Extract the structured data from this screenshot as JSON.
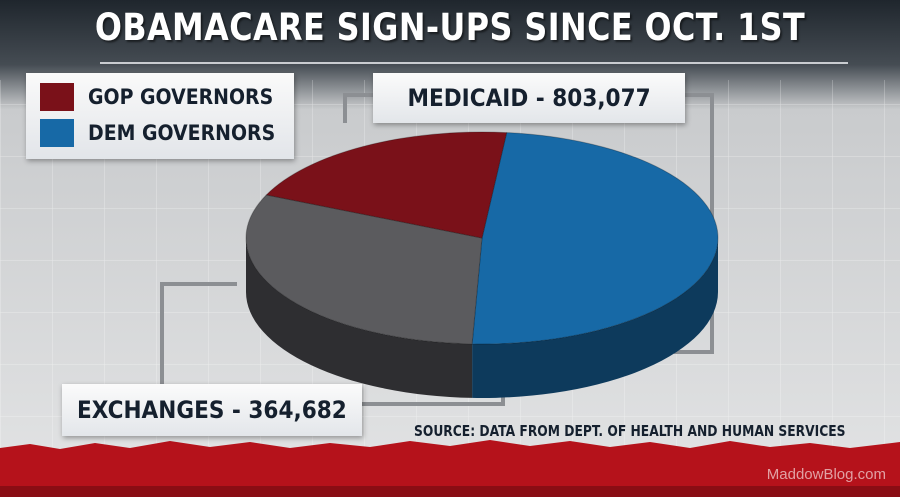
{
  "title": "OBAMACARE SIGN-UPS SINCE OCT. 1ST",
  "legend": [
    {
      "label": "GOP GOVERNORS",
      "color": "#7a1119"
    },
    {
      "label": "DEM GOVERNORS",
      "color": "#1769a6"
    }
  ],
  "callouts": {
    "medicaid": "MEDICAID - 803,077",
    "exchanges": "EXCHANGES - 364,682"
  },
  "source": "SOURCE: DATA FROM DEPT. OF HEALTH AND HUMAN SERVICES",
  "watermark": "MaddowBlog.com",
  "chart_data": {
    "type": "pie",
    "title": "OBAMACARE SIGN-UPS SINCE OCT. 1ST",
    "start_angle_deg": -84,
    "slices": [
      {
        "label": "DEM GOVERNORS",
        "fraction": 0.49,
        "color": "#1769a6",
        "side_color": "#0d3a5c"
      },
      {
        "label": "",
        "fraction": 0.31,
        "color": "#5b5b5e",
        "side_color": "#2e2e31"
      },
      {
        "label": "GOP GOVERNORS",
        "fraction": 0.2,
        "color": "#7a1119",
        "side_color": "#4a0a0f"
      }
    ],
    "annotations": [
      "MEDICAID - 803,077",
      "EXCHANGES - 364,682"
    ],
    "legend_position": "top-left"
  }
}
